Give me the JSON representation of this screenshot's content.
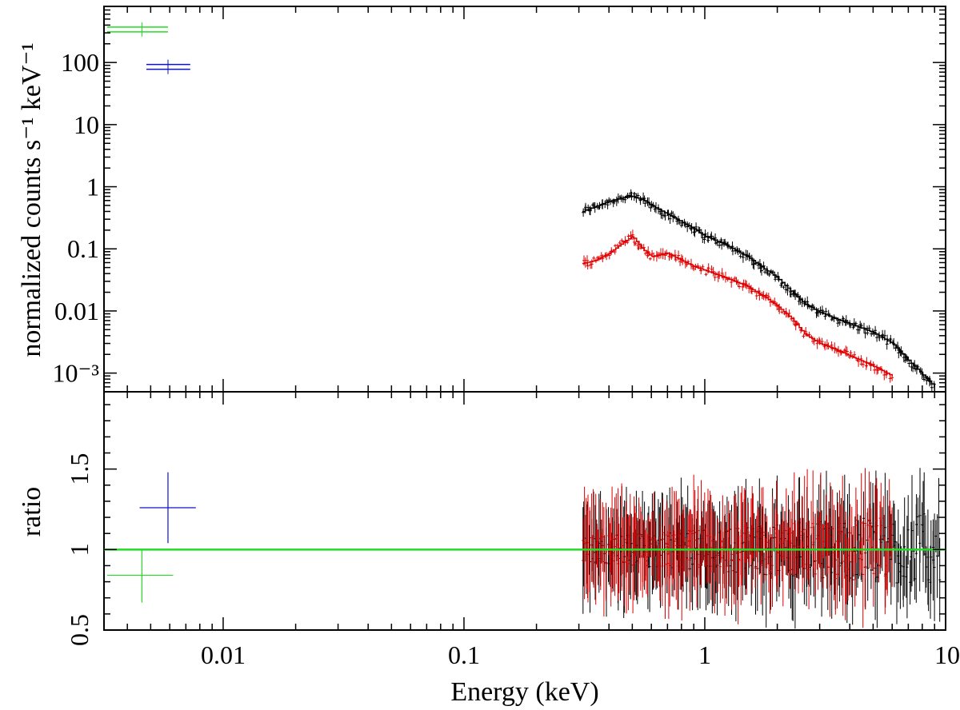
{
  "chart_data": [
    {
      "type": "line",
      "panel": "spectrum",
      "xlabel": "",
      "ylabel": "normalized counts s⁻¹ keV⁻¹",
      "xscale": "log",
      "yscale": "log",
      "xlim": [
        0.0032,
        10
      ],
      "ylim": [
        0.0005,
        800
      ],
      "y_tick_labels": [
        "10⁻³",
        "0.01",
        "0.1",
        "1",
        "10",
        "100"
      ],
      "y_ticks": [
        0.001,
        0.01,
        0.1,
        1,
        10,
        100
      ],
      "colors": {
        "black": "#000000",
        "red": "#e00000",
        "green": "#22dd22",
        "blue": "#1010cc"
      },
      "series": [
        {
          "color": "black",
          "x": [
            0.31,
            0.35,
            0.4,
            0.45,
            0.5,
            0.55,
            0.6,
            0.7,
            0.8,
            0.9,
            1.0,
            1.2,
            1.5,
            1.8,
            2.0,
            2.3,
            2.6,
            3.0,
            3.5,
            4.0,
            5.0,
            6.0,
            7.0,
            8.0,
            9.0
          ],
          "y": [
            0.4,
            0.48,
            0.58,
            0.66,
            0.7,
            0.62,
            0.5,
            0.36,
            0.27,
            0.21,
            0.16,
            0.12,
            0.075,
            0.045,
            0.034,
            0.02,
            0.013,
            0.0095,
            0.0075,
            0.0062,
            0.0045,
            0.003,
            0.0016,
            0.00095,
            0.0006
          ]
        },
        {
          "color": "red",
          "x": [
            0.31,
            0.35,
            0.4,
            0.45,
            0.5,
            0.55,
            0.6,
            0.7,
            0.8,
            0.9,
            1.0,
            1.2,
            1.5,
            1.8,
            2.0,
            2.3,
            2.6,
            3.0,
            3.5,
            4.0,
            5.0,
            6.0
          ],
          "y": [
            0.058,
            0.065,
            0.085,
            0.12,
            0.16,
            0.1,
            0.075,
            0.085,
            0.065,
            0.052,
            0.045,
            0.035,
            0.025,
            0.016,
            0.012,
            0.0075,
            0.0042,
            0.003,
            0.0024,
            0.0019,
            0.0013,
            0.0009
          ]
        }
      ],
      "extra_points": [
        {
          "color": "green",
          "x": 0.0046,
          "x_lo": 0.0033,
          "x_hi": 0.0059,
          "y": 340
        },
        {
          "color": "blue",
          "x": 0.0059,
          "x_lo": 0.0048,
          "x_hi": 0.0073,
          "y": 85
        }
      ]
    },
    {
      "type": "scatter",
      "panel": "ratio",
      "xlabel": "Energy (keV)",
      "ylabel": "ratio",
      "xscale": "log",
      "xlim": [
        0.0032,
        10
      ],
      "ylim": [
        0.5,
        1.98
      ],
      "x_ticks": [
        0.01,
        0.1,
        1,
        10
      ],
      "x_tick_labels": [
        "0.01",
        "0.1",
        "1",
        "10"
      ],
      "y_ticks": [
        0.5,
        1,
        1.5
      ],
      "y_tick_labels": [
        "0.5",
        "1",
        "1.5"
      ],
      "reference_line": {
        "y": 1,
        "color": "green"
      },
      "points": [
        {
          "color": "blue",
          "x": 0.0059,
          "x_lo": 0.0045,
          "x_hi": 0.0077,
          "y": 1.26,
          "y_lo": 1.04,
          "y_hi": 1.48
        },
        {
          "color": "green",
          "x": 0.0046,
          "x_lo": 0.0033,
          "x_hi": 0.0062,
          "y": 0.84,
          "y_lo": 0.67,
          "y_hi": 1.0
        }
      ],
      "scatter_series": [
        {
          "color": "black",
          "x_range": [
            0.31,
            9.5
          ],
          "y_center": 1.0
        },
        {
          "color": "red",
          "x_range": [
            0.31,
            6.0
          ],
          "y_center": 1.0
        }
      ]
    }
  ]
}
